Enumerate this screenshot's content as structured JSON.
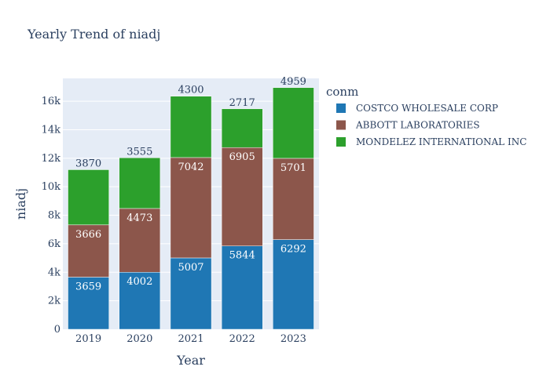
{
  "chart_data": {
    "type": "bar",
    "stacked": true,
    "title": "Yearly Trend of niadj",
    "xlabel": "Year",
    "ylabel": "niadj",
    "categories": [
      "2019",
      "2020",
      "2021",
      "2022",
      "2023"
    ],
    "ylim": [
      0,
      17600
    ],
    "yticks": [
      0,
      2000,
      4000,
      6000,
      8000,
      10000,
      12000,
      14000,
      16000
    ],
    "ytick_labels": [
      "0",
      "2k",
      "4k",
      "6k",
      "8k",
      "10k",
      "12k",
      "14k",
      "16k"
    ],
    "legend_title": "conm",
    "legend_position": "right",
    "grid": true,
    "series": [
      {
        "name": "COSTCO WHOLESALE CORP",
        "color": "#1f77b4",
        "values": [
          3659,
          4002,
          5007,
          5844,
          6292
        ],
        "labels": [
          "3659",
          "4002",
          "5007",
          "5844",
          "6292"
        ]
      },
      {
        "name": "ABBOTT LABORATORIES",
        "color": "#8c564b",
        "values": [
          3666,
          4473,
          7042,
          6905,
          5701
        ],
        "labels": [
          "3666",
          "4473",
          "7042",
          "6905",
          "5701"
        ]
      },
      {
        "name": "MONDELEZ INTERNATIONAL INC",
        "color": "#2ca02c",
        "values": [
          3870,
          3555,
          4300,
          2717,
          4959
        ],
        "labels": [
          "3870",
          "3555",
          "4300",
          "2717",
          "4959"
        ]
      }
    ]
  }
}
